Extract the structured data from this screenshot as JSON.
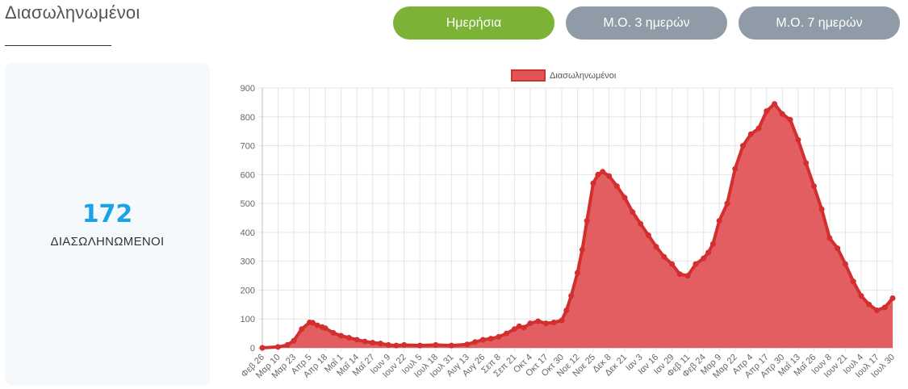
{
  "page": {
    "title": "Διασωληνωμένοι"
  },
  "buttons": [
    {
      "label": "Ημερήσια",
      "active": true
    },
    {
      "label": "Μ.Ο. 3 ημερών",
      "active": false
    },
    {
      "label": "Μ.Ο. 7 ημερών",
      "active": false
    }
  ],
  "stat": {
    "value": "172",
    "label": "ΔΙΑΣΩΛΗΝΩΜΕΝΟΙ"
  },
  "colors": {
    "accent_green": "#7cb337",
    "button_gray": "#8f9ba6",
    "stat_blue": "#1aa3e8",
    "series_fill": "#e05557",
    "series_line": "#d32f2f"
  },
  "chart_data": {
    "type": "area",
    "legend": {
      "position": "top",
      "entries": [
        "Διασωληνωμένοι"
      ]
    },
    "ylim": [
      0,
      900
    ],
    "y_ticks": [
      0,
      100,
      200,
      300,
      400,
      500,
      600,
      700,
      800,
      900
    ],
    "grid": true,
    "x_ticks": [
      "Φεβ 26",
      "Μαρ 10",
      "Μαρ 23",
      "Απρ 5",
      "Απρ 18",
      "Μαΐ 1",
      "Μαΐ 14",
      "Μαΐ 27",
      "Ιουν 9",
      "Ιουν 22",
      "Ιουλ 5",
      "Ιουλ 18",
      "Ιουλ 31",
      "Αυγ 13",
      "Αυγ 26",
      "Σεπ 8",
      "Σεπ 21",
      "Οκτ 4",
      "Οκτ 17",
      "Οκτ 30",
      "Νοε 12",
      "Νοε 25",
      "Δεκ 8",
      "Δεκ 21",
      "Ιαν 3",
      "Ιαν 16",
      "Ιαν 29",
      "Φεβ 11",
      "Φεβ 24",
      "Μαρ 9",
      "Μαρ 22",
      "Απρ 4",
      "Απρ 17",
      "Απρ 30",
      "Μαΐ 13",
      "Μαΐ 26",
      "Ιουν 8",
      "Ιουν 21",
      "Ιουλ 4",
      "Ιουλ 17",
      "Ιουλ 30"
    ],
    "series": [
      {
        "name": "Διασωληνωμένοι",
        "x_tick_index": [
          0,
          1,
          1.6,
          2,
          2.5,
          3,
          3.2,
          3.5,
          3.8,
          4,
          4.5,
          5,
          5.5,
          6,
          6.5,
          7,
          7.5,
          8,
          8.5,
          9,
          10,
          11,
          12,
          13,
          13.5,
          14,
          14.5,
          15,
          15.5,
          16,
          16.3,
          16.6,
          17,
          17.5,
          18,
          18.5,
          19,
          19.3,
          19.6,
          20,
          20.3,
          20.6,
          21,
          21.3,
          21.6,
          22,
          22.5,
          23,
          23.5,
          24,
          24.5,
          25,
          25.5,
          26,
          26.5,
          27,
          27.5,
          28,
          28.3,
          28.6,
          29,
          29.5,
          30,
          30.5,
          31,
          31.5,
          32,
          32.5,
          33,
          33.5,
          34,
          34.5,
          35,
          35.5,
          36,
          36.5,
          37,
          37.5,
          38,
          38.5,
          39,
          39.5,
          40
        ],
        "values": [
          0,
          3,
          10,
          25,
          65,
          88,
          87,
          78,
          72,
          68,
          52,
          42,
          35,
          28,
          22,
          18,
          15,
          10,
          8,
          10,
          8,
          10,
          8,
          12,
          20,
          28,
          32,
          38,
          50,
          65,
          75,
          70,
          85,
          92,
          85,
          88,
          95,
          130,
          180,
          260,
          340,
          440,
          570,
          600,
          610,
          595,
          560,
          520,
          470,
          430,
          390,
          350,
          315,
          290,
          255,
          250,
          290,
          310,
          330,
          360,
          440,
          500,
          620,
          700,
          740,
          760,
          820,
          845,
          810,
          790,
          720,
          640,
          560,
          480,
          380,
          345,
          290,
          230,
          180,
          150,
          130,
          140,
          172
        ]
      }
    ]
  }
}
